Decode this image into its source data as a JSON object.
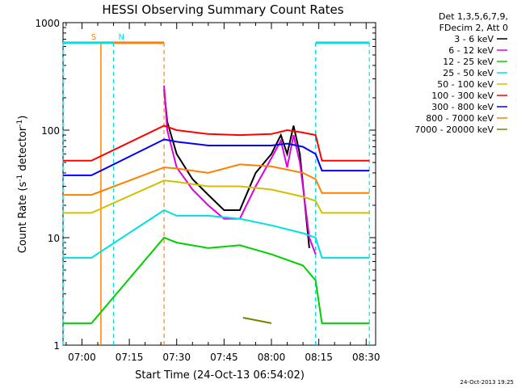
{
  "chart_data": {
    "type": "line",
    "title": "HESSI Observing Summary Count Rates",
    "xlabel": "Start Time (24-Oct-13 06:54:02)",
    "ylabel": "Count Rate (s⁻¹ detector⁻¹)",
    "ylabel_parts": [
      "Count Rate (s",
      "-1",
      " detector",
      "-1",
      ")"
    ],
    "yscale": "log",
    "ylim": [
      1,
      1000
    ],
    "y_ticks": [
      {
        "value": 1,
        "label": "1"
      },
      {
        "value": 10,
        "label": "10"
      },
      {
        "value": 100,
        "label": "100"
      },
      {
        "value": 1000,
        "label": "1000"
      }
    ],
    "xlim": [
      "06:54",
      "08:33"
    ],
    "x_ticks": [
      "07:00",
      "07:15",
      "07:30",
      "07:45",
      "08:00",
      "08:15",
      "08:30"
    ],
    "legend": {
      "position": "right",
      "header": [
        "Det 1,3,5,6,7,9,",
        "FDecim 2, Att 0"
      ]
    },
    "series": [
      {
        "name": "3 - 6 keV",
        "color": "#000000",
        "points": [
          [
            "07:26",
            240
          ],
          [
            "07:27",
            120
          ],
          [
            "07:30",
            60
          ],
          [
            "07:35",
            35
          ],
          [
            "07:40",
            25
          ],
          [
            "07:45",
            18
          ],
          [
            "07:50",
            18
          ],
          [
            "07:55",
            40
          ],
          [
            "08:00",
            60
          ],
          [
            "08:03",
            90
          ],
          [
            "08:05",
            60
          ],
          [
            "08:07",
            110
          ],
          [
            "08:09",
            60
          ],
          [
            "08:12",
            8
          ]
        ]
      },
      {
        "name": "6 - 12 keV",
        "color": "#e000e0",
        "points": [
          [
            "07:26",
            260
          ],
          [
            "07:27",
            100
          ],
          [
            "07:30",
            45
          ],
          [
            "07:35",
            28
          ],
          [
            "07:40",
            20
          ],
          [
            "07:45",
            15
          ],
          [
            "07:50",
            15
          ],
          [
            "07:55",
            30
          ],
          [
            "08:00",
            55
          ],
          [
            "08:03",
            80
          ],
          [
            "08:05",
            45
          ],
          [
            "08:07",
            90
          ],
          [
            "08:09",
            50
          ],
          [
            "08:12",
            10
          ],
          [
            "08:14",
            7
          ]
        ]
      },
      {
        "name": "12 - 25 keV",
        "color": "#00d000",
        "points": [
          [
            "06:54",
            1.6
          ],
          [
            "07:03",
            1.6
          ],
          [
            "07:26",
            10
          ],
          [
            "07:30",
            9
          ],
          [
            "07:40",
            8
          ],
          [
            "07:50",
            8.5
          ],
          [
            "08:00",
            7
          ],
          [
            "08:10",
            5.5
          ],
          [
            "08:14",
            4
          ],
          [
            "08:16",
            1.6
          ],
          [
            "08:31",
            1.6
          ]
        ]
      },
      {
        "name": "25 - 50 keV",
        "color": "#00e0e0",
        "points": [
          [
            "06:54",
            6.5
          ],
          [
            "07:03",
            6.5
          ],
          [
            "07:26",
            18
          ],
          [
            "07:30",
            16
          ],
          [
            "07:40",
            16
          ],
          [
            "07:50",
            15
          ],
          [
            "08:00",
            13
          ],
          [
            "08:10",
            11
          ],
          [
            "08:14",
            10
          ],
          [
            "08:16",
            6.5
          ],
          [
            "08:31",
            6.5
          ]
        ]
      },
      {
        "name": "50 - 100 keV",
        "color": "#d0c000",
        "points": [
          [
            "06:54",
            17
          ],
          [
            "07:03",
            17
          ],
          [
            "07:26",
            34
          ],
          [
            "07:30",
            33
          ],
          [
            "07:40",
            30
          ],
          [
            "07:50",
            30
          ],
          [
            "08:00",
            28
          ],
          [
            "08:10",
            24
          ],
          [
            "08:14",
            22
          ],
          [
            "08:16",
            17
          ],
          [
            "08:31",
            17
          ]
        ]
      },
      {
        "name": "100 - 300 keV",
        "color": "#ff0000",
        "points": [
          [
            "06:54",
            52
          ],
          [
            "07:03",
            52
          ],
          [
            "07:26",
            110
          ],
          [
            "07:30",
            100
          ],
          [
            "07:40",
            92
          ],
          [
            "07:50",
            90
          ],
          [
            "08:00",
            92
          ],
          [
            "08:05",
            100
          ],
          [
            "08:10",
            95
          ],
          [
            "08:14",
            90
          ],
          [
            "08:16",
            52
          ],
          [
            "08:31",
            52
          ]
        ]
      },
      {
        "name": "300 - 800 keV",
        "color": "#0000ff",
        "points": [
          [
            "06:54",
            38
          ],
          [
            "07:03",
            38
          ],
          [
            "07:26",
            82
          ],
          [
            "07:30",
            78
          ],
          [
            "07:40",
            72
          ],
          [
            "07:50",
            72
          ],
          [
            "08:00",
            72
          ],
          [
            "08:05",
            75
          ],
          [
            "08:10",
            70
          ],
          [
            "08:14",
            60
          ],
          [
            "08:16",
            42
          ],
          [
            "08:31",
            42
          ]
        ]
      },
      {
        "name": "800 - 7000 keV",
        "color": "#ff8000",
        "points": [
          [
            "06:54",
            25
          ],
          [
            "07:03",
            25
          ],
          [
            "07:26",
            45
          ],
          [
            "07:30",
            44
          ],
          [
            "07:40",
            40
          ],
          [
            "07:50",
            48
          ],
          [
            "08:00",
            46
          ],
          [
            "08:10",
            40
          ],
          [
            "08:14",
            35
          ],
          [
            "08:16",
            26
          ],
          [
            "08:31",
            26
          ]
        ]
      },
      {
        "name": "7000 - 20000 keV",
        "color": "#808000",
        "points": [
          [
            "07:51",
            1.8
          ],
          [
            "08:00",
            1.6
          ]
        ]
      }
    ],
    "flags": [
      {
        "label": "S",
        "color": "#ff8000",
        "start": "07:06",
        "end": "07:26",
        "level": 650
      },
      {
        "label": "N",
        "color": "#00e0e0",
        "start": "06:54",
        "end": "07:10",
        "level": 650
      },
      {
        "label": "",
        "color": "#00e0e0",
        "start": "08:14",
        "end": "08:31",
        "level": 650
      }
    ]
  },
  "footer": {
    "timestamp": "24-Oct-2013 19:25"
  }
}
